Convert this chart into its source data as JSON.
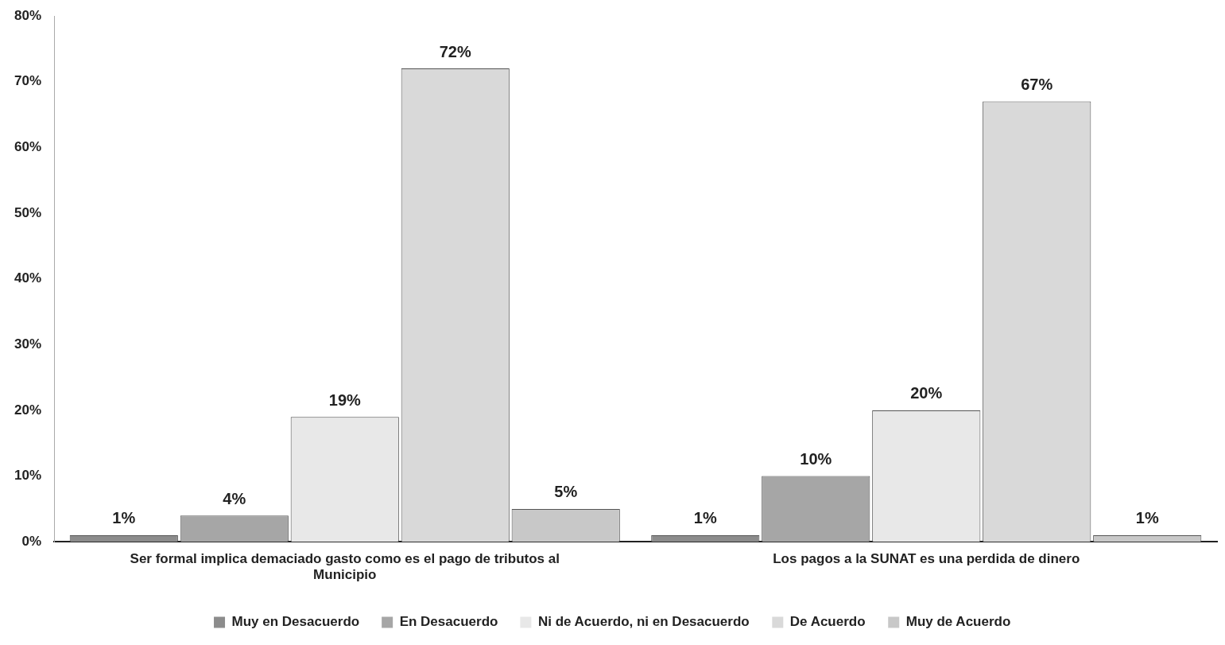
{
  "chart_data": {
    "type": "bar",
    "categories": [
      "Ser formal implica demaciado gasto como es el pago de tributos al Municipio",
      "Los pagos a la SUNAT es una perdida de dinero"
    ],
    "series": [
      {
        "name": "Muy en Desacuerdo",
        "color": "#8c8c8c",
        "values": [
          1,
          1
        ],
        "value_labels": [
          "1%",
          "1%"
        ]
      },
      {
        "name": "En Desacuerdo",
        "color": "#a6a6a6",
        "values": [
          4,
          10
        ],
        "value_labels": [
          "4%",
          "10%"
        ]
      },
      {
        "name": "Ni de Acuerdo, ni en Desacuerdo",
        "color": "#e8e8e8",
        "values": [
          19,
          20
        ],
        "value_labels": [
          "19%",
          "20%"
        ]
      },
      {
        "name": "De Acuerdo",
        "color": "#d9d9d9",
        "values": [
          72,
          67
        ],
        "value_labels": [
          "72%",
          "67%"
        ]
      },
      {
        "name": "Muy de Acuerdo",
        "color": "#c8c8c8",
        "values": [
          5,
          1
        ],
        "value_labels": [
          "5%",
          "1%"
        ]
      }
    ],
    "ylim": [
      0,
      80
    ],
    "yticks": [
      {
        "value": 0,
        "label": "0%"
      },
      {
        "value": 10,
        "label": "10%"
      },
      {
        "value": 20,
        "label": "20%"
      },
      {
        "value": 30,
        "label": "30%"
      },
      {
        "value": 40,
        "label": "40%"
      },
      {
        "value": 50,
        "label": "50%"
      },
      {
        "value": 60,
        "label": "60%"
      },
      {
        "value": 70,
        "label": "70%"
      },
      {
        "value": 80,
        "label": "80%"
      }
    ],
    "grid": false,
    "legend": "bottom"
  }
}
